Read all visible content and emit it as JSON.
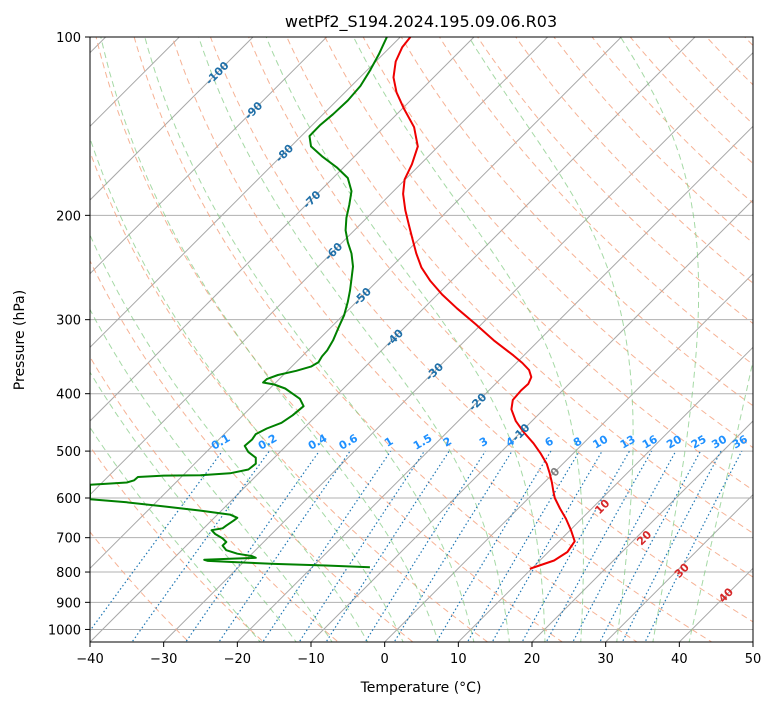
{
  "chart_data": {
    "type": "line",
    "title": "wetPf2_S194.2024.195.09.06.R03",
    "xlabel": "Temperature (°C)",
    "ylabel": "Pressure (hPa)",
    "xlim": [
      -40,
      50
    ],
    "ylim": [
      1050,
      100
    ],
    "y_scale": "log",
    "grid": true,
    "x_ticks": [
      -40,
      -30,
      -20,
      -10,
      0,
      10,
      20,
      30,
      40,
      50
    ],
    "y_ticks": [
      100,
      200,
      300,
      400,
      500,
      600,
      700,
      800,
      900,
      1000
    ],
    "x_tick_labels": [
      "−40",
      "−30",
      "−20",
      "−10",
      "0",
      "10",
      "20",
      "30",
      "40",
      "50"
    ],
    "y_tick_labels": [
      "100",
      "200",
      "300",
      "400",
      "500",
      "600",
      "700",
      "800",
      "900",
      "1000"
    ],
    "skewT_isotherm_labels": [
      {
        "text": "-100",
        "t": -100,
        "p": 115
      },
      {
        "text": "-90",
        "t": -90,
        "p": 133
      },
      {
        "text": "-80",
        "t": -80,
        "p": 157
      },
      {
        "text": "-70",
        "t": -70,
        "p": 188
      },
      {
        "text": "-60",
        "t": -60,
        "p": 230
      },
      {
        "text": "-50",
        "t": -50,
        "p": 274
      },
      {
        "text": "-40",
        "t": -40,
        "p": 322
      },
      {
        "text": "-30",
        "t": -30,
        "p": 367
      },
      {
        "text": "-20",
        "t": -20,
        "p": 413
      },
      {
        "text": "-10",
        "t": -10,
        "p": 465
      },
      {
        "text": "0",
        "t": 0,
        "p": 542
      }
    ],
    "dry_adiabat_labels": [
      {
        "text": "10",
        "x": 29.5,
        "p": 620
      },
      {
        "text": "20",
        "x": 35.2,
        "p": 700
      },
      {
        "text": "30",
        "x": 40.3,
        "p": 795
      },
      {
        "text": "40",
        "x": 46.3,
        "p": 875
      }
    ],
    "mixing_ratio_labels": [
      "0.1",
      "0.2",
      "0.4",
      "0.6",
      "1",
      "1.5",
      "2",
      "3",
      "4",
      "6",
      "8",
      "10",
      "13",
      "16",
      "20",
      "25",
      "30",
      "36"
    ],
    "mixing_ratio_values": [
      0.1,
      0.2,
      0.4,
      0.6,
      1,
      1.5,
      2,
      3,
      4,
      6,
      8,
      10,
      13,
      16,
      20,
      25,
      30,
      36
    ],
    "series": [
      {
        "color": "#ee0000",
        "points": [
          [
            19.7,
            790
          ],
          [
            21.0,
            780
          ],
          [
            23.0,
            765
          ],
          [
            24.8,
            740
          ],
          [
            25.8,
            710
          ],
          [
            25.3,
            680
          ],
          [
            24.6,
            650
          ],
          [
            23.8,
            625
          ],
          [
            23.1,
            600
          ],
          [
            22.9,
            585
          ],
          [
            22.7,
            565
          ],
          [
            22.4,
            545
          ],
          [
            22.0,
            525
          ],
          [
            21.2,
            505
          ],
          [
            20.2,
            485
          ],
          [
            18.9,
            465
          ],
          [
            17.8,
            445
          ],
          [
            17.2,
            425
          ],
          [
            17.4,
            410
          ],
          [
            18.5,
            395
          ],
          [
            19.5,
            385
          ],
          [
            19.9,
            375
          ],
          [
            19.6,
            365
          ],
          [
            18.7,
            355
          ],
          [
            17.5,
            345
          ],
          [
            14.8,
            325
          ],
          [
            12.3,
            305
          ],
          [
            9.8,
            287
          ],
          [
            7.8,
            272
          ],
          [
            6.2,
            258
          ],
          [
            5.0,
            245
          ],
          [
            4.3,
            232
          ],
          [
            3.8,
            220
          ],
          [
            3.3,
            208
          ],
          [
            2.8,
            196
          ],
          [
            2.5,
            184
          ],
          [
            2.7,
            174
          ],
          [
            3.7,
            164
          ],
          [
            4.5,
            153
          ],
          [
            4.0,
            142
          ],
          [
            2.6,
            132
          ],
          [
            1.6,
            124
          ],
          [
            1.2,
            117
          ],
          [
            1.5,
            110
          ],
          [
            2.4,
            104
          ],
          [
            3.5,
            100
          ]
        ]
      },
      {
        "color": "#008000",
        "points": [
          [
            -2.0,
            785
          ],
          [
            -8.0,
            780
          ],
          [
            -15.0,
            775
          ],
          [
            -20.0,
            770
          ],
          [
            -24.0,
            766
          ],
          [
            -24.5,
            763
          ],
          [
            -21.0,
            760
          ],
          [
            -17.5,
            757
          ],
          [
            -18.0,
            752
          ],
          [
            -20.0,
            745
          ],
          [
            -21.5,
            735
          ],
          [
            -22.0,
            722
          ],
          [
            -21.5,
            712
          ],
          [
            -22.0,
            702
          ],
          [
            -23.0,
            690
          ],
          [
            -23.5,
            680
          ],
          [
            -22.0,
            675
          ],
          [
            -21.5,
            668
          ],
          [
            -20.5,
            655
          ],
          [
            -20.0,
            648
          ],
          [
            -21.0,
            640
          ],
          [
            -25.0,
            630
          ],
          [
            -30.0,
            620
          ],
          [
            -35.0,
            610
          ],
          [
            -40.0,
            603
          ],
          [
            -40.0,
            570
          ],
          [
            -38.0,
            568
          ],
          [
            -35.0,
            565
          ],
          [
            -34.0,
            560
          ],
          [
            -33.5,
            553
          ],
          [
            -30.0,
            550
          ],
          [
            -25.0,
            549
          ],
          [
            -21.0,
            545
          ],
          [
            -18.5,
            537
          ],
          [
            -17.5,
            525
          ],
          [
            -17.5,
            513
          ],
          [
            -18.5,
            502
          ],
          [
            -19.0,
            490
          ],
          [
            -18.0,
            478
          ],
          [
            -17.5,
            468
          ],
          [
            -16.0,
            458
          ],
          [
            -14.0,
            448
          ],
          [
            -12.5,
            435
          ],
          [
            -11.0,
            420
          ],
          [
            -11.5,
            408
          ],
          [
            -12.5,
            400
          ],
          [
            -13.5,
            392
          ],
          [
            -15.0,
            386
          ],
          [
            -16.5,
            383
          ],
          [
            -16.0,
            378
          ],
          [
            -14.5,
            372
          ],
          [
            -12.0,
            366
          ],
          [
            -10.0,
            360
          ],
          [
            -9.0,
            354
          ],
          [
            -8.5,
            346
          ],
          [
            -7.8,
            338
          ],
          [
            -7.0,
            325
          ],
          [
            -6.3,
            310
          ],
          [
            -5.5,
            295
          ],
          [
            -5.0,
            280
          ],
          [
            -4.7,
            268
          ],
          [
            -4.5,
            256
          ],
          [
            -4.3,
            244
          ],
          [
            -4.5,
            232
          ],
          [
            -5.0,
            222
          ],
          [
            -5.3,
            212
          ],
          [
            -5.2,
            202
          ],
          [
            -4.8,
            192
          ],
          [
            -4.5,
            182
          ],
          [
            -5.0,
            173
          ],
          [
            -6.5,
            166
          ],
          [
            -8.5,
            159
          ],
          [
            -10.0,
            153
          ],
          [
            -10.2,
            147
          ],
          [
            -8.8,
            141
          ],
          [
            -7.0,
            135
          ],
          [
            -5.0,
            128
          ],
          [
            -3.3,
            121
          ],
          [
            -2.0,
            114
          ],
          [
            -0.8,
            107
          ],
          [
            0.3,
            100
          ]
        ]
      }
    ]
  }
}
